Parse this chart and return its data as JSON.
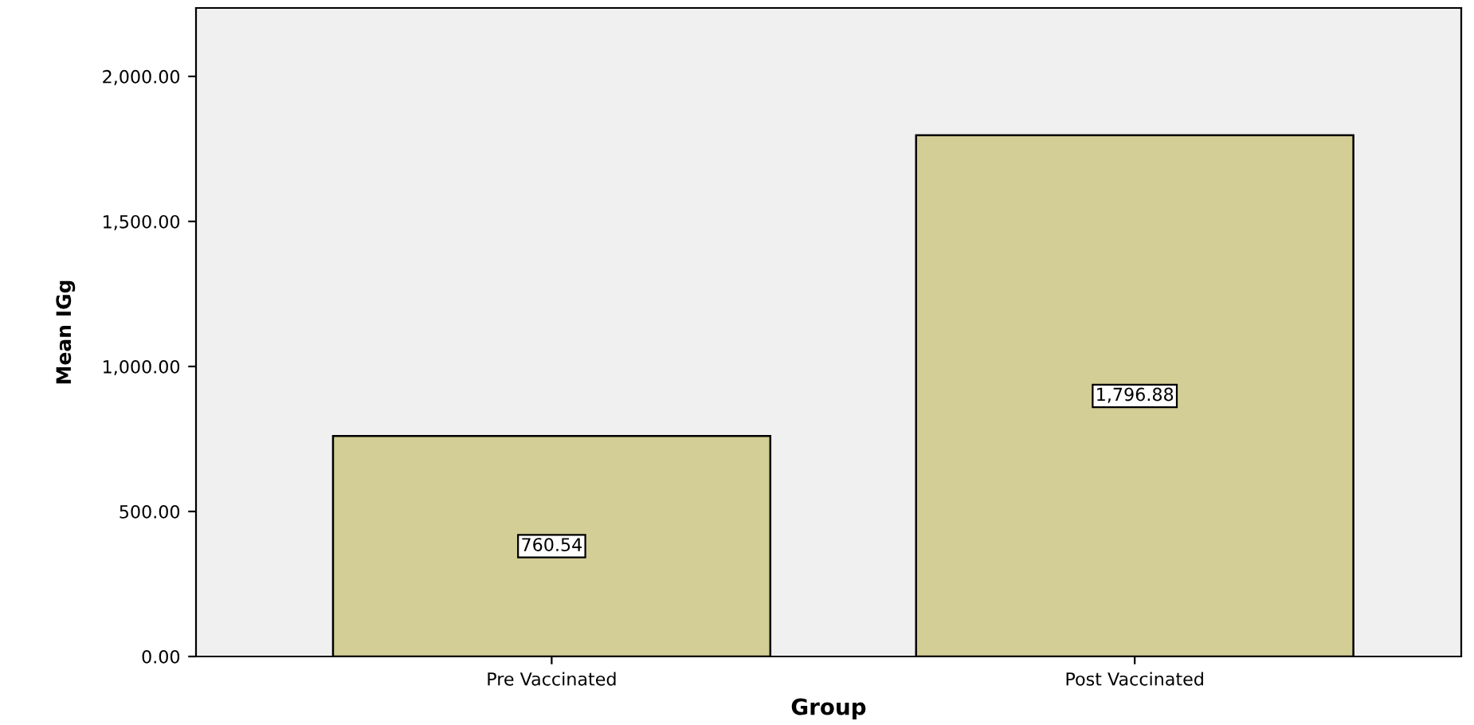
{
  "chart_data": {
    "type": "bar",
    "xlabel": "Group",
    "ylabel": "Mean IGg",
    "categories": [
      "Pre Vaccinated",
      "Post Vaccinated"
    ],
    "values": [
      760.54,
      1796.88
    ],
    "value_labels": [
      "760.54",
      "1,796.88"
    ],
    "color": "#d3cd96",
    "ylim": [
      0,
      2236
    ],
    "yticks": [
      {
        "value": 0,
        "label": "0.00"
      },
      {
        "value": 500,
        "label": "500.00"
      },
      {
        "value": 1000,
        "label": "1,000.00"
      },
      {
        "value": 1500,
        "label": "1,500.00"
      },
      {
        "value": 2000,
        "label": "2,000.00"
      }
    ],
    "grid": false
  }
}
